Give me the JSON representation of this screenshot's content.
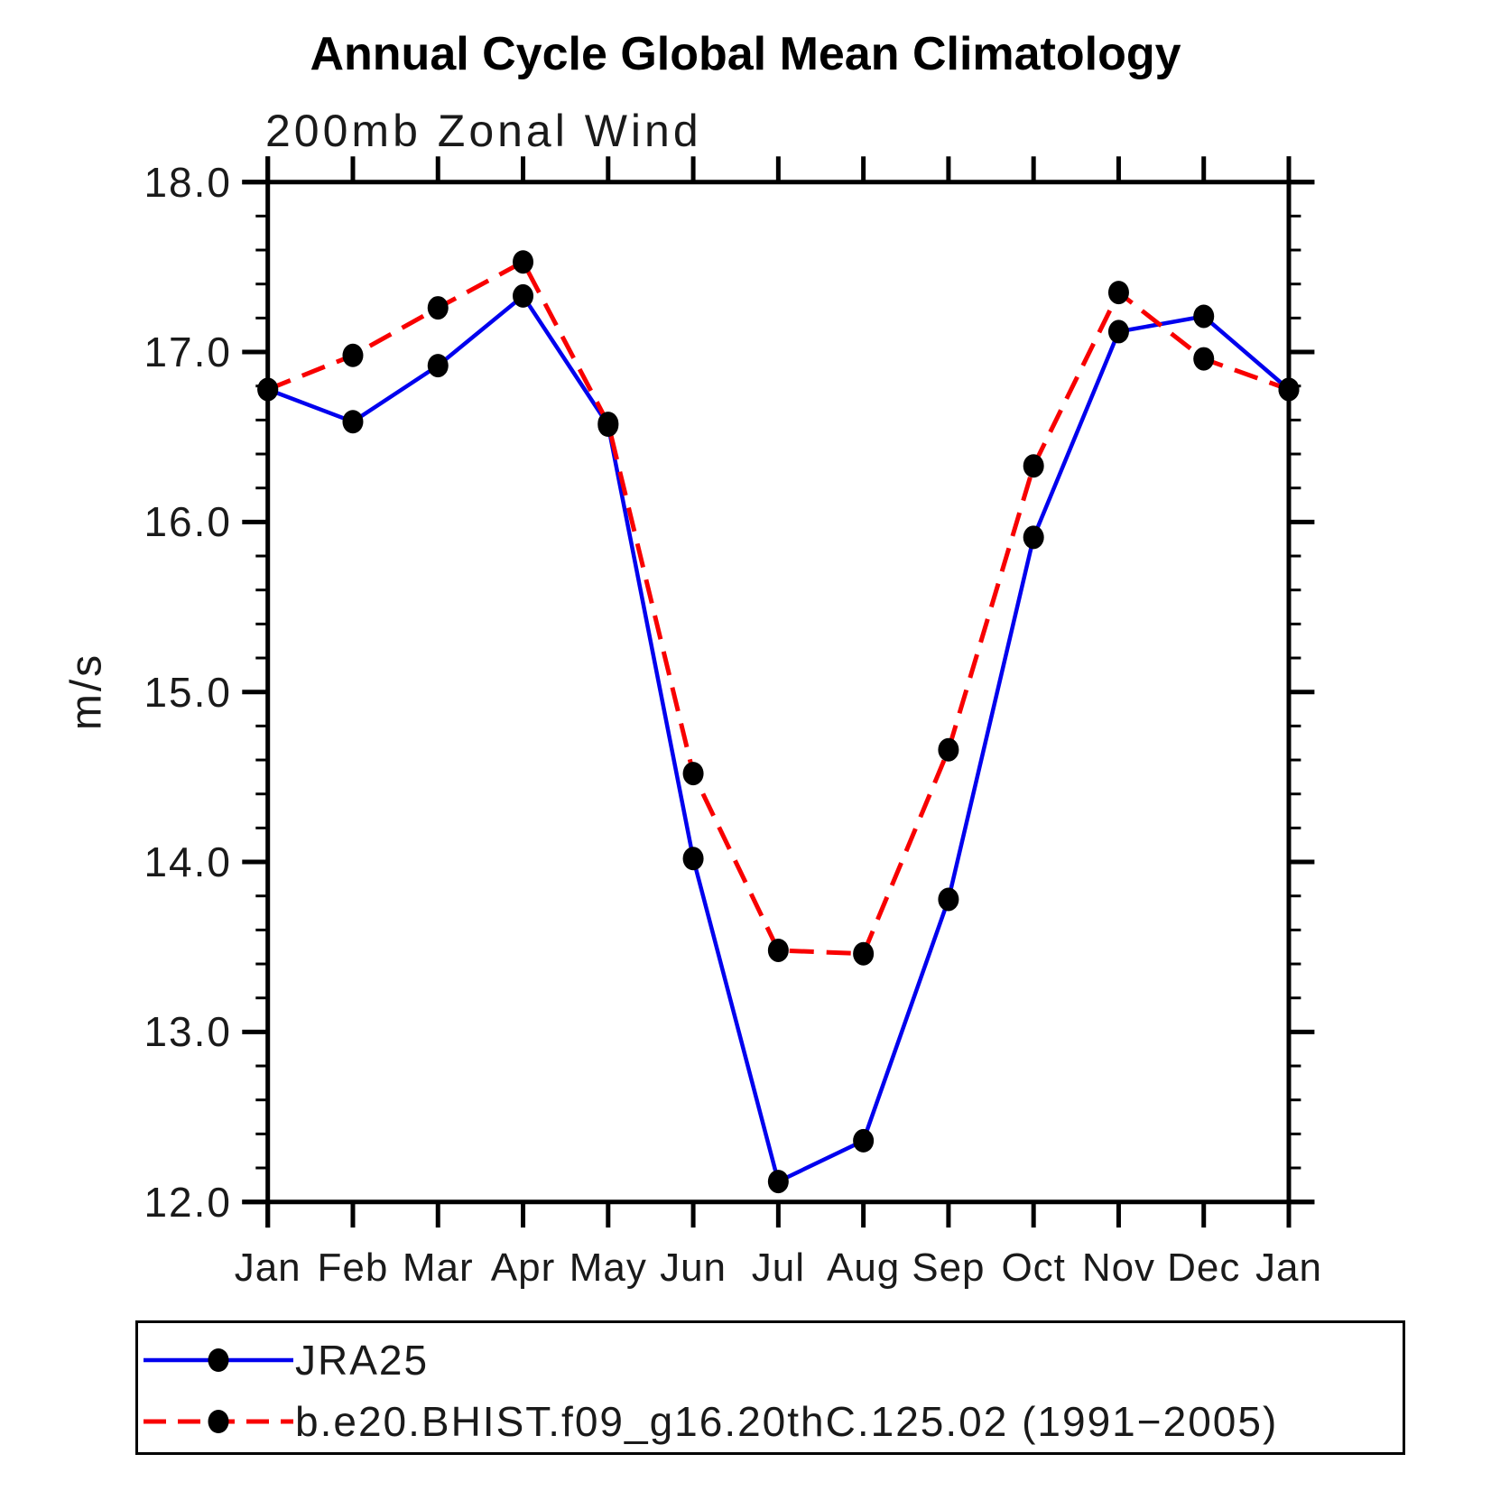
{
  "title": "Annual Cycle Global Mean Climatology",
  "subtitle": "200mb Zonal Wind",
  "ylabel": "m/s",
  "chart_data": {
    "type": "line",
    "title": "Annual Cycle Global Mean Climatology",
    "subtitle": "200mb Zonal Wind",
    "xlabel": "",
    "ylabel": "m/s",
    "categories": [
      "Jan",
      "Feb",
      "Mar",
      "Apr",
      "May",
      "Jun",
      "Jul",
      "Aug",
      "Sep",
      "Oct",
      "Nov",
      "Dec",
      "Jan"
    ],
    "ylim": [
      12.0,
      18.0
    ],
    "ytick_labels": [
      "12.0",
      "13.0",
      "14.0",
      "15.0",
      "16.0",
      "17.0",
      "18.0"
    ],
    "ytick_minor_step": 0.2,
    "grid": false,
    "legend_position": "bottom",
    "marker": "filled-circle",
    "marker_color": "#000000",
    "series": [
      {
        "name": "JRA25",
        "color": "#0000ee",
        "style": "solid",
        "values": [
          16.78,
          16.59,
          16.92,
          17.33,
          16.57,
          14.02,
          12.12,
          12.36,
          13.78,
          15.91,
          17.12,
          17.21,
          16.78
        ]
      },
      {
        "name": "b.e20.BHIST.f09_g16.20thC.125.02 (1991−2005)",
        "color": "#f80000",
        "style": "dashed",
        "values": [
          16.78,
          16.98,
          17.26,
          17.53,
          16.58,
          14.52,
          13.48,
          13.46,
          14.66,
          16.33,
          17.35,
          16.96,
          16.78
        ]
      }
    ]
  }
}
